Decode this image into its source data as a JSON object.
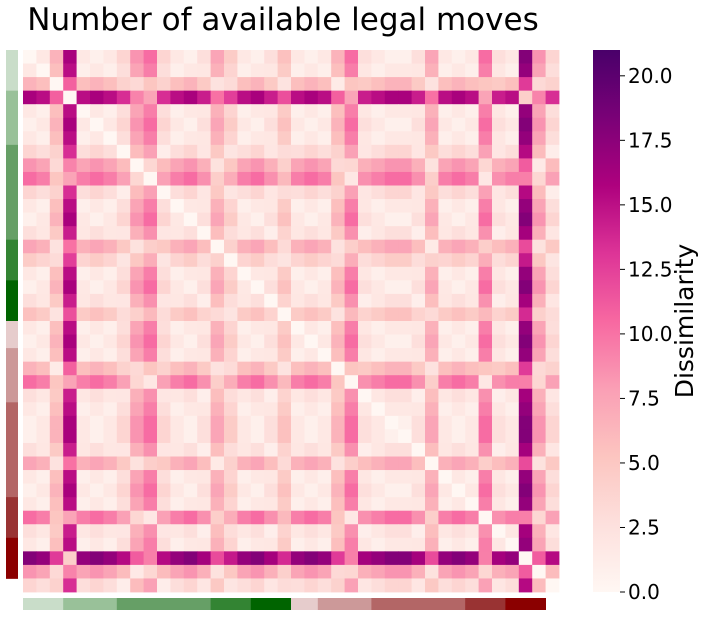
{
  "chart_data": {
    "type": "heatmap",
    "title": "Number of available legal moves",
    "xlabel": "",
    "ylabel": "",
    "n_rows": 40,
    "n_cols": 40,
    "matrix_note": "symmetric dissimilarity matrix, zero diagonal; values estimated from colors",
    "base_values": [
      2,
      3,
      8,
      18,
      3,
      2,
      3,
      5,
      10,
      12,
      5,
      3,
      2,
      4,
      9,
      6,
      3,
      2,
      4,
      7,
      3,
      2,
      3,
      8,
      12,
      4,
      3,
      2,
      2,
      4,
      9,
      3,
      2,
      3,
      12,
      4,
      3,
      20,
      10,
      5
    ],
    "colorbar": {
      "label": "Dissimilarity",
      "min": 0.0,
      "max": 21.0,
      "ticks": [
        "0.0",
        "2.5",
        "5.0",
        "7.5",
        "10.0",
        "12.5",
        "15.0",
        "17.5",
        "20.0"
      ],
      "colormap": [
        "#fff7f3",
        "#fde0dd",
        "#fcc5c0",
        "#fa9fb5",
        "#f768a1",
        "#dd3497",
        "#ae017e",
        "#7a0177",
        "#49006a"
      ]
    },
    "group_bar": {
      "segments": [
        {
          "start": 0,
          "size": 3,
          "color": "#c9ddc9"
        },
        {
          "start": 3,
          "size": 4,
          "color": "#99c199"
        },
        {
          "start": 7,
          "size": 7,
          "color": "#669f66"
        },
        {
          "start": 14,
          "size": 3,
          "color": "#338433"
        },
        {
          "start": 17,
          "size": 3,
          "color": "#006400"
        },
        {
          "start": 20,
          "size": 2,
          "color": "#e6cccc"
        },
        {
          "start": 22,
          "size": 4,
          "color": "#cc9999"
        },
        {
          "start": 26,
          "size": 7,
          "color": "#b36666"
        },
        {
          "start": 33,
          "size": 3,
          "color": "#993333"
        },
        {
          "start": 36,
          "size": 3,
          "color": "#8b0000"
        }
      ]
    }
  }
}
